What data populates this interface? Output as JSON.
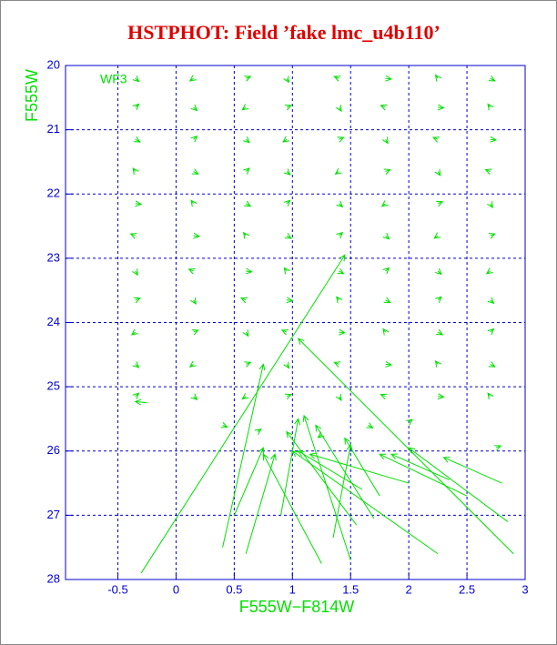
{
  "chart_data": {
    "type": "quiver",
    "title": "HSTPHOT: Field ’fake lmc_u4b110’",
    "x_label": "F555W−F814W",
    "y_label": "F555W",
    "annotation": "WF3",
    "color": "#00e000",
    "axis_color": "#0000cc",
    "grid": true,
    "xlim": [
      -0.95,
      3
    ],
    "ylim": [
      28,
      20
    ],
    "xticks": [
      -0.5,
      0,
      0.5,
      1,
      1.5,
      2,
      2.5,
      3
    ],
    "yticks": [
      20,
      21,
      22,
      23,
      24,
      25,
      26,
      27,
      28
    ],
    "x": [
      -0.35,
      0.15,
      0.6,
      0.95,
      1.4,
      1.8,
      2.25,
      2.7,
      -0.35,
      0.15,
      0.6,
      0.95,
      1.4,
      1.8,
      2.25,
      2.7,
      -0.35,
      0.15,
      0.6,
      0.95,
      1.4,
      1.8,
      2.25,
      2.7,
      -0.35,
      0.15,
      0.6,
      0.95,
      1.4,
      1.8,
      2.25,
      2.7,
      -0.35,
      0.15,
      0.6,
      0.95,
      1.4,
      1.8,
      2.25,
      2.7,
      -0.35,
      0.15,
      0.6,
      0.95,
      1.4,
      1.8,
      2.25,
      2.7,
      -0.35,
      0.15,
      0.6,
      0.95,
      1.4,
      1.8,
      2.25,
      2.7,
      -0.35,
      0.15,
      0.6,
      0.95,
      1.4,
      1.8,
      2.25,
      2.7,
      -0.35,
      0.15,
      0.6,
      0.95,
      1.4,
      1.8,
      2.25,
      2.7,
      -0.35,
      0.15,
      0.6,
      0.95,
      1.4,
      1.8,
      2.25,
      2.7,
      -0.35,
      0.15,
      0.6,
      0.95,
      1.4,
      1.8,
      2.25,
      2.7,
      0.4,
      0.7,
      1.25,
      1.65,
      2.0,
      2.75,
      -0.25,
      -0.3,
      0.4,
      2.9,
      0.5,
      0.9,
      1.25,
      1.5,
      1.55,
      1.7,
      2.25,
      2.85,
      2.0,
      2.5,
      2.35,
      2.8,
      1.75,
      1.35,
      1.6,
      0.6
    ],
    "y": [
      20.2,
      20.2,
      20.2,
      20.2,
      20.2,
      20.2,
      20.2,
      20.2,
      20.65,
      20.65,
      20.65,
      20.65,
      20.65,
      20.65,
      20.65,
      20.65,
      21.15,
      21.15,
      21.15,
      21.15,
      21.15,
      21.15,
      21.15,
      21.15,
      21.65,
      21.65,
      21.65,
      21.65,
      21.65,
      21.65,
      21.65,
      21.65,
      22.15,
      22.15,
      22.15,
      22.15,
      22.15,
      22.15,
      22.15,
      22.15,
      22.65,
      22.65,
      22.65,
      22.65,
      22.65,
      22.65,
      22.65,
      22.65,
      23.2,
      23.2,
      23.2,
      23.2,
      23.2,
      23.2,
      23.2,
      23.2,
      23.65,
      23.65,
      23.65,
      23.65,
      23.65,
      23.65,
      23.65,
      23.65,
      24.15,
      24.15,
      24.15,
      24.15,
      24.15,
      24.15,
      24.15,
      24.15,
      24.65,
      24.65,
      24.65,
      24.65,
      24.65,
      24.65,
      24.65,
      24.65,
      25.15,
      25.15,
      25.15,
      25.15,
      25.15,
      25.15,
      25.15,
      25.15,
      25.6,
      25.7,
      25.75,
      25.6,
      25.55,
      25.95,
      25.25,
      27.9,
      27.5,
      27.6,
      27.0,
      27.0,
      27.75,
      27.7,
      27.15,
      27.05,
      27.6,
      27.1,
      26.5,
      26.7,
      26.45,
      26.5,
      26.7,
      27.35,
      26.6,
      27.6
    ],
    "u": [
      0.03,
      -0.03,
      0.04,
      0.02,
      -0.04,
      0.05,
      -0.02,
      0.04,
      0.03,
      0.03,
      -0.03,
      0.04,
      0.02,
      -0.04,
      0.05,
      -0.02,
      0.04,
      0.03,
      0.03,
      -0.03,
      0.04,
      0.02,
      -0.04,
      0.05,
      -0.02,
      0.04,
      0.03,
      0.03,
      -0.03,
      0.04,
      0.02,
      -0.04,
      0.05,
      -0.02,
      0.04,
      0.03,
      0.03,
      -0.03,
      0.04,
      0.02,
      -0.04,
      0.05,
      -0.02,
      0.04,
      0.03,
      0.03,
      -0.03,
      0.04,
      0.02,
      -0.04,
      0.05,
      -0.02,
      0.04,
      0.03,
      0.03,
      -0.03,
      0.04,
      0.02,
      -0.04,
      0.05,
      -0.02,
      0.04,
      0.03,
      0.03,
      -0.03,
      0.04,
      0.02,
      -0.04,
      0.05,
      -0.02,
      0.04,
      0.03,
      0.03,
      -0.03,
      0.04,
      0.02,
      -0.04,
      0.05,
      -0.02,
      0.04,
      0.03,
      0.03,
      -0.03,
      0.04,
      0.02,
      -0.04,
      0.05,
      -0.02,
      0.04,
      0.03,
      -0.03,
      0.04,
      0.03,
      0.04,
      -0.1,
      1.75,
      0.35,
      -1.85,
      0.25,
      0.15,
      -0.5,
      -0.4,
      -0.6,
      -0.5,
      -1.25,
      -0.85,
      -0.85,
      -0.75,
      -0.5,
      -0.5,
      -0.3,
      0.15,
      -0.55,
      0.25
    ],
    "v": [
      0.05,
      0.04,
      -0.03,
      0.06,
      -0.03,
      0.01,
      -0.05,
      0.04,
      -0.05,
      0.05,
      0.04,
      -0.03,
      0.06,
      -0.03,
      0.01,
      -0.05,
      0.04,
      -0.05,
      0.05,
      0.04,
      -0.03,
      0.06,
      -0.03,
      0.01,
      -0.05,
      0.04,
      -0.05,
      0.05,
      0.04,
      -0.03,
      0.06,
      -0.03,
      0.01,
      -0.05,
      0.04,
      -0.05,
      0.05,
      0.04,
      -0.03,
      0.06,
      -0.03,
      0.01,
      -0.05,
      0.04,
      -0.05,
      0.05,
      0.04,
      -0.03,
      0.06,
      -0.03,
      0.01,
      -0.05,
      0.04,
      -0.05,
      0.05,
      0.04,
      -0.03,
      0.06,
      -0.03,
      0.01,
      -0.05,
      0.04,
      -0.05,
      0.05,
      0.04,
      -0.03,
      0.06,
      -0.03,
      0.01,
      -0.05,
      0.04,
      -0.05,
      0.05,
      0.04,
      -0.03,
      0.06,
      -0.03,
      0.01,
      -0.05,
      0.04,
      -0.05,
      0.05,
      0.04,
      -0.03,
      0.06,
      -0.03,
      0.01,
      -0.05,
      0.03,
      -0.04,
      0.04,
      0.04,
      -0.04,
      -0.03,
      -0.02,
      -4.95,
      -2.85,
      -3.35,
      -1.05,
      -1.5,
      -1.7,
      -2.25,
      -1.45,
      -1.45,
      -1.6,
      -1.15,
      -0.45,
      -0.65,
      -0.4,
      -0.4,
      -0.9,
      -1.45,
      -0.6,
      -1.55
    ]
  }
}
